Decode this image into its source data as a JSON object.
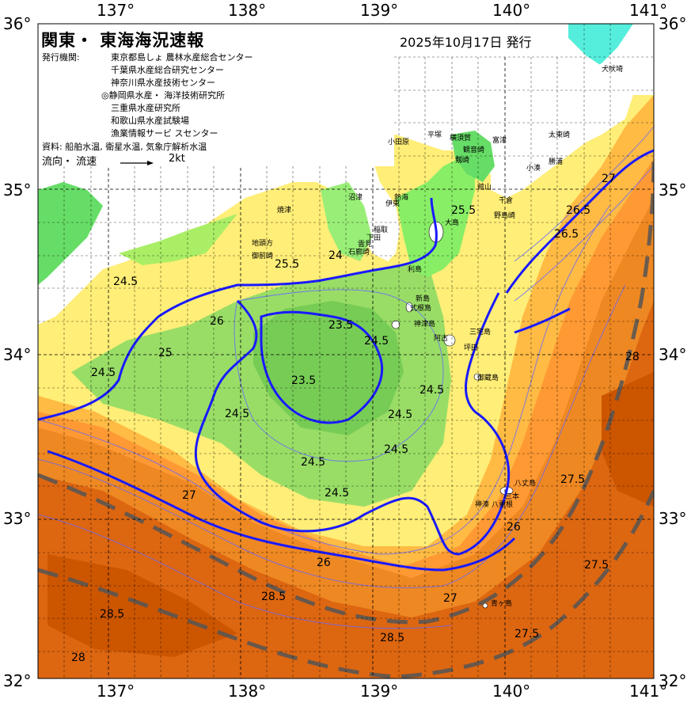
{
  "title": "関東・ 東海海況速報",
  "date": "2025年10月17日 発行",
  "issuer_label": "発行機関:",
  "issuers": [
    "東京都島しょ 農林水産総合センター",
    "千葉県水産総合研究センター",
    "神奈川県水産技術センター",
    "◎静岡県水産・ 海洋技術研究所",
    "三重県水産研究所",
    "和歌山県水産試験場",
    "漁業情報サービ スセンター"
  ],
  "source_label": "資料: 船舶水温, 衛星水温, 気象庁解析水温",
  "flow_label": "流向・ 流速",
  "flow_scale": "2kt",
  "lon_ticks": [
    "137°",
    "138°",
    "139°",
    "140°",
    "141°"
  ],
  "lat_ticks": [
    "36°",
    "35°",
    "34°",
    "33°",
    "32°"
  ],
  "colors": {
    "green": "#66dd66",
    "light_green": "#99ee77",
    "yellow": "#ffee77",
    "light_orange": "#ffcc55",
    "orange": "#ff9933",
    "dark_orange": "#ee7711",
    "red_orange": "#cc5500",
    "cyan": "#66ffff",
    "current": "#1a1aff",
    "kuroshio": "#555555"
  },
  "places": [
    "犬吠埼",
    "太東崎",
    "勝浦",
    "小湊",
    "千倉",
    "館山",
    "野島崎",
    "富津",
    "横須賀",
    "観音崎",
    "剱崎",
    "平塚",
    "小田原",
    "熱海",
    "伊東",
    "稲取",
    "下田",
    "石廊崎",
    "雲見",
    "沼津",
    "焼津",
    "地頭方",
    "御前崎",
    "大島",
    "利島",
    "新島",
    "式根島",
    "神津島",
    "三宅島",
    "御蔵島",
    "八丈島",
    "青ヶ島",
    "三本",
    "坪田",
    "阿古",
    "八重根",
    "神湊"
  ],
  "contour_labels": [
    "23.5",
    "24",
    "24.5",
    "25",
    "25.5",
    "26",
    "26.5",
    "27",
    "27.5",
    "28",
    "28.5"
  ]
}
